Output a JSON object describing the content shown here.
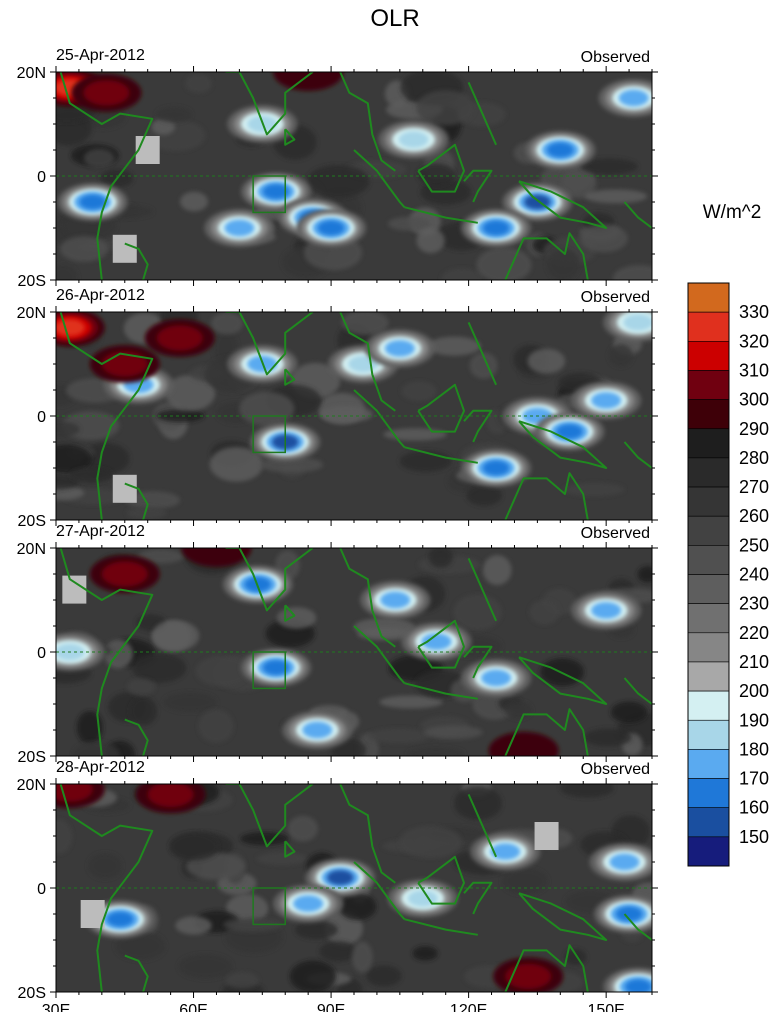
{
  "chart_data": {
    "type": "heatmap",
    "title": "OLR",
    "units_label": "W/m^2",
    "panel_tag": "Observed",
    "x_tick_labels": [
      "30E",
      "60E",
      "90E",
      "120E",
      "150E"
    ],
    "x_tick_values": [
      30,
      60,
      90,
      120,
      150
    ],
    "xlim": [
      30,
      160
    ],
    "y_tick_labels": [
      "20N",
      "0",
      "20S"
    ],
    "y_tick_values": [
      20,
      0,
      -20
    ],
    "ylim": [
      -20,
      20
    ],
    "colorbar": {
      "labels": [
        "330",
        "320",
        "310",
        "300",
        "290",
        "280",
        "270",
        "260",
        "250",
        "240",
        "230",
        "220",
        "210",
        "200",
        "190",
        "180",
        "170",
        "160",
        "150"
      ],
      "colors": [
        "#d2691e",
        "#e0301e",
        "#cc0000",
        "#700010",
        "#3e0008",
        "#1e1e1e",
        "#2a2a2a",
        "#353535",
        "#424242",
        "#505050",
        "#5e5e5e",
        "#707070",
        "#868686",
        "#a8a8a8",
        "#d4f0f2",
        "#a8d6e8",
        "#5aaaf0",
        "#1f78d8",
        "#1a4fa0",
        "#161c7c"
      ]
    },
    "panels": [
      {
        "date": "25-Apr-2012",
        "features": [
          {
            "type": "low",
            "lon": 38,
            "lat": -5,
            "value": 160
          },
          {
            "type": "low",
            "lon": 78,
            "lat": -3,
            "value": 160
          },
          {
            "type": "low",
            "lon": 86,
            "lat": -8,
            "value": 165
          },
          {
            "type": "low",
            "lon": 90,
            "lat": -10,
            "value": 160
          },
          {
            "type": "low",
            "lon": 70,
            "lat": -10,
            "value": 170
          },
          {
            "type": "low",
            "lon": 135,
            "lat": -5,
            "value": 150
          },
          {
            "type": "low",
            "lon": 140,
            "lat": 5,
            "value": 160
          },
          {
            "type": "low",
            "lon": 126,
            "lat": -10,
            "value": 165
          },
          {
            "type": "low",
            "lon": 75,
            "lat": 10,
            "value": 180
          },
          {
            "type": "low",
            "lon": 108,
            "lat": 7,
            "value": 180
          },
          {
            "type": "low",
            "lon": 156,
            "lat": 15,
            "value": 175
          },
          {
            "type": "high",
            "lon": 33,
            "lat": 17,
            "value": 320
          },
          {
            "type": "high",
            "lon": 41,
            "lat": 16,
            "value": 300
          },
          {
            "type": "high",
            "lon": 85,
            "lat": 20,
            "value": 295
          },
          {
            "type": "missing",
            "lon": 50,
            "lat": 5,
            "value": 205
          },
          {
            "type": "missing",
            "lon": 45,
            "lat": -14,
            "value": 205
          }
        ]
      },
      {
        "date": "26-Apr-2012",
        "features": [
          {
            "type": "low",
            "lon": 75,
            "lat": 10,
            "value": 170
          },
          {
            "type": "low",
            "lon": 80,
            "lat": -5,
            "value": 150
          },
          {
            "type": "low",
            "lon": 48,
            "lat": 6,
            "value": 175
          },
          {
            "type": "low",
            "lon": 97,
            "lat": 10,
            "value": 180
          },
          {
            "type": "low",
            "lon": 105,
            "lat": 13,
            "value": 170
          },
          {
            "type": "low",
            "lon": 126,
            "lat": -10,
            "value": 165
          },
          {
            "type": "low",
            "lon": 135,
            "lat": 0,
            "value": 170
          },
          {
            "type": "low",
            "lon": 142,
            "lat": -3,
            "value": 160
          },
          {
            "type": "low",
            "lon": 150,
            "lat": 3,
            "value": 175
          },
          {
            "type": "low",
            "lon": 157,
            "lat": 18,
            "value": 180
          },
          {
            "type": "high",
            "lon": 33,
            "lat": 17,
            "value": 320
          },
          {
            "type": "high",
            "lon": 45,
            "lat": 10,
            "value": 300
          },
          {
            "type": "high",
            "lon": 57,
            "lat": 15,
            "value": 300
          },
          {
            "type": "missing",
            "lon": 45,
            "lat": -14,
            "value": 205
          }
        ]
      },
      {
        "date": "27-Apr-2012",
        "features": [
          {
            "type": "low",
            "lon": 78,
            "lat": -3,
            "value": 160
          },
          {
            "type": "low",
            "lon": 74,
            "lat": 13,
            "value": 165
          },
          {
            "type": "low",
            "lon": 104,
            "lat": 10,
            "value": 175
          },
          {
            "type": "low",
            "lon": 126,
            "lat": -5,
            "value": 170
          },
          {
            "type": "low",
            "lon": 113,
            "lat": 2,
            "value": 175
          },
          {
            "type": "low",
            "lon": 33,
            "lat": 0,
            "value": 185
          },
          {
            "type": "low",
            "lon": 87,
            "lat": -15,
            "value": 170
          },
          {
            "type": "low",
            "lon": 150,
            "lat": 8,
            "value": 175
          },
          {
            "type": "high",
            "lon": 45,
            "lat": 15,
            "value": 300
          },
          {
            "type": "high",
            "lon": 65,
            "lat": 20,
            "value": 295
          },
          {
            "type": "high",
            "lon": 132,
            "lat": -19,
            "value": 295
          },
          {
            "type": "missing",
            "lon": 34,
            "lat": 12,
            "value": 205
          }
        ]
      },
      {
        "date": "28-Apr-2012",
        "features": [
          {
            "type": "low",
            "lon": 92,
            "lat": 2,
            "value": 150
          },
          {
            "type": "low",
            "lon": 44,
            "lat": -6,
            "value": 160
          },
          {
            "type": "low",
            "lon": 85,
            "lat": -3,
            "value": 170
          },
          {
            "type": "low",
            "lon": 128,
            "lat": 7,
            "value": 170
          },
          {
            "type": "low",
            "lon": 155,
            "lat": -5,
            "value": 165
          },
          {
            "type": "low",
            "lon": 154,
            "lat": 5,
            "value": 175
          },
          {
            "type": "low",
            "lon": 157,
            "lat": -19,
            "value": 160
          },
          {
            "type": "low",
            "lon": 110,
            "lat": -2,
            "value": 185
          },
          {
            "type": "high",
            "lon": 33,
            "lat": 19,
            "value": 305
          },
          {
            "type": "high",
            "lon": 55,
            "lat": 18,
            "value": 300
          },
          {
            "type": "high",
            "lon": 133,
            "lat": -17,
            "value": 300
          },
          {
            "type": "missing",
            "lon": 38,
            "lat": -5,
            "value": 205
          },
          {
            "type": "missing",
            "lon": 137,
            "lat": 10,
            "value": 205
          }
        ]
      }
    ]
  }
}
